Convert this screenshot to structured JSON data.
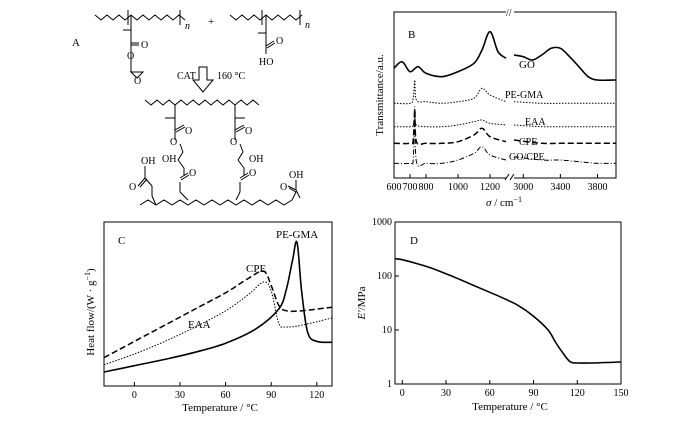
{
  "panels": {
    "A": {
      "label": "A",
      "plus": "+",
      "arrow_catalyst": "CAT",
      "arrow_temp": "160 °C",
      "sub_n1": "n",
      "sub_n2": "n",
      "atoms": {
        "o1": "O",
        "o2": "O",
        "o3": "O",
        "o4": "O",
        "ho1": "HO",
        "b_o1": "O",
        "b_o2": "O",
        "b_oh1": "OH",
        "b_oh2": "OH",
        "b_o3": "O",
        "b_o4": "O",
        "b_o5": "O",
        "b_o6": "O",
        "b_oh_left": "OH",
        "b_o_left": "O",
        "b_oh_right": "OH",
        "b_o_right": "O"
      }
    },
    "B": {
      "label": "B",
      "ylabel": "Transmittance/a.u.",
      "xlabel_sym": "σ",
      "xlabel_unit": " / cm",
      "xlabel_exp": "−1",
      "break_mark": "//",
      "xticks": [
        "600",
        "700",
        "800",
        "1000",
        "1200",
        "3000",
        "3400",
        "3800"
      ],
      "series_labels": [
        "GO",
        "PE-GMA",
        "EAA",
        "CPE",
        "GO/CPE"
      ]
    },
    "C": {
      "label": "C",
      "ylabel": "Heat flow/(W · g",
      "ylabel_exp": "−1",
      "ylabel_end": ")",
      "xlabel": "Temperature / °C",
      "xticks": [
        "0",
        "30",
        "60",
        "90",
        "120"
      ],
      "series_labels": [
        "PE-GMA",
        "CPE",
        "EAA"
      ]
    },
    "D": {
      "label": "D",
      "ylabel_sym": "E'",
      "ylabel_unit": "/MPa",
      "xlabel": "Temperature / °C",
      "xticks": [
        "0",
        "30",
        "60",
        "90",
        "120",
        "150"
      ],
      "yticks": [
        "1",
        "10",
        "100",
        "1000"
      ]
    }
  },
  "chart_data": [
    {
      "type": "line",
      "panel": "C",
      "xlabel": "Temperature / °C",
      "ylabel": "Heat flow/(W · g−1)",
      "xlim": [
        -20,
        130
      ],
      "series": [
        {
          "name": "PE-GMA",
          "x": [
            -20,
            0,
            20,
            40,
            60,
            80,
            95,
            100,
            104,
            107,
            110,
            114,
            120,
            130
          ],
          "y": [
            0.0,
            0.35,
            0.7,
            1.1,
            1.6,
            2.4,
            3.5,
            4.6,
            6.2,
            7.2,
            4.5,
            2.2,
            1.7,
            1.65
          ]
        },
        {
          "name": "CPE",
          "x": [
            -20,
            0,
            20,
            40,
            60,
            75,
            85,
            90,
            95,
            100,
            110,
            130
          ],
          "y": [
            0.8,
            1.7,
            2.6,
            3.5,
            4.4,
            5.2,
            5.6,
            4.8,
            3.7,
            3.4,
            3.4,
            3.6
          ]
        },
        {
          "name": "EAA",
          "x": [
            -20,
            0,
            20,
            40,
            60,
            75,
            85,
            90,
            95,
            100,
            110,
            130
          ],
          "y": [
            0.4,
            1.0,
            1.7,
            2.5,
            3.4,
            4.3,
            5.0,
            4.5,
            2.7,
            2.5,
            2.6,
            3.0
          ]
        }
      ]
    },
    {
      "type": "line",
      "panel": "D",
      "xlabel": "Temperature / °C",
      "ylabel": "E'/MPa",
      "xlim": [
        -5,
        150
      ],
      "ylim": [
        1,
        1000
      ],
      "yscale": "log",
      "series": [
        {
          "name": "",
          "x": [
            -5,
            0,
            10,
            20,
            30,
            40,
            50,
            60,
            70,
            80,
            90,
            100,
            105,
            110,
            115,
            120,
            130,
            140,
            150
          ],
          "y": [
            210,
            200,
            170,
            140,
            110,
            85,
            65,
            50,
            38,
            28,
            18,
            10,
            6,
            3.8,
            2.6,
            2.45,
            2.45,
            2.5,
            2.55
          ]
        }
      ]
    },
    {
      "type": "line",
      "panel": "B",
      "xlabel": "σ / cm−1",
      "ylabel": "Transmittance/a.u.",
      "x_segments": [
        [
          600,
          1300
        ],
        [
          2900,
          4000
        ]
      ],
      "series": [
        {
          "name": "GO",
          "x": [
            600,
            650,
            700,
            750,
            800,
            900,
            1000,
            1100,
            1150,
            1200,
            1250,
            1300,
            2900,
            3000,
            3100,
            3200,
            3300,
            3400,
            3500,
            3600,
            3700,
            3800,
            4000
          ],
          "y": [
            8.1,
            8.5,
            7.9,
            8.2,
            7.8,
            7.6,
            7.9,
            8.4,
            9.2,
            10.3,
            9.1,
            8.7,
            8.9,
            8.8,
            8.6,
            8.9,
            9.3,
            9.3,
            8.8,
            8.2,
            7.6,
            7.4,
            7.4
          ]
        },
        {
          "name": "PE-GMA",
          "x": [
            600,
            700,
            720,
            730,
            740,
            800,
            900,
            1000,
            1100,
            1150,
            1200,
            1300,
            2900,
            3200,
            3400,
            3600,
            3800,
            4000
          ],
          "y": [
            6.0,
            6.0,
            6.3,
            7.4,
            6.2,
            6.1,
            6.0,
            6.1,
            6.3,
            6.9,
            6.5,
            6.1,
            6.1,
            6.0,
            6.0,
            6.0,
            6.0,
            6.0
          ]
        },
        {
          "name": "EAA",
          "x": [
            600,
            700,
            720,
            730,
            740,
            800,
            900,
            1000,
            1100,
            1150,
            1200,
            1300,
            2900,
            3200,
            3400,
            3600,
            3800,
            4000
          ],
          "y": [
            4.6,
            4.6,
            4.7,
            5.2,
            4.7,
            4.6,
            4.6,
            4.7,
            4.9,
            5.0,
            4.8,
            4.7,
            4.7,
            4.6,
            4.6,
            4.6,
            4.6,
            4.6
          ]
        },
        {
          "name": "CPE",
          "x": [
            600,
            700,
            720,
            730,
            740,
            800,
            900,
            1000,
            1100,
            1150,
            1200,
            1300,
            2900,
            3200,
            3400,
            3600,
            3800,
            4000
          ],
          "y": [
            3.6,
            3.6,
            3.8,
            5.6,
            3.7,
            3.6,
            3.6,
            3.7,
            4.1,
            4.5,
            4.0,
            3.7,
            3.8,
            3.6,
            3.6,
            3.6,
            3.6,
            3.6
          ]
        },
        {
          "name": "GO/CPE",
          "x": [
            600,
            700,
            720,
            730,
            740,
            800,
            900,
            1000,
            1100,
            1150,
            1200,
            1300,
            2900,
            3200,
            3400,
            3600,
            3800,
            4000
          ],
          "y": [
            2.4,
            2.4,
            2.6,
            5.8,
            2.5,
            2.4,
            2.4,
            2.6,
            3.0,
            3.4,
            2.9,
            2.6,
            2.8,
            2.6,
            2.6,
            2.5,
            2.4,
            2.4
          ]
        }
      ]
    }
  ]
}
